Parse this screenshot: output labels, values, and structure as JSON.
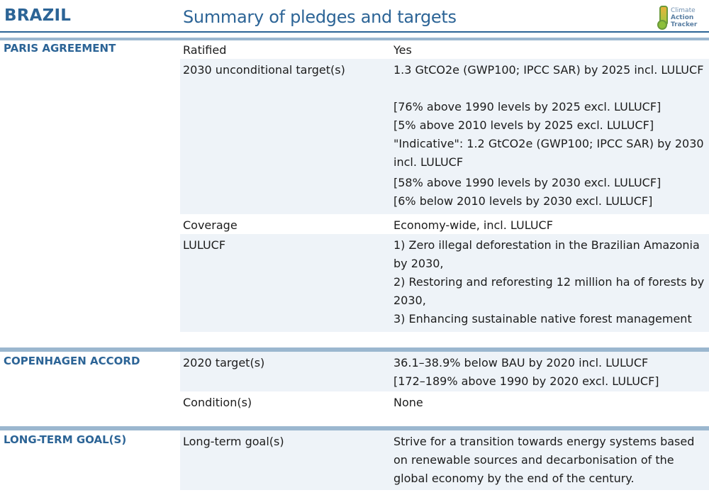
{
  "header": {
    "country": "BRAZIL",
    "title": "Summary of pledges and targets",
    "logo": {
      "line1": "Climate",
      "line2": "Action",
      "line3": "Tracker"
    },
    "accent_color": "#2c6496"
  },
  "sections": {
    "paris": {
      "label": "PARIS AGREEMENT",
      "rows": {
        "ratified": {
          "label": "Ratified",
          "value": "Yes"
        },
        "unconditional": {
          "label": "2030 unconditional target(s)",
          "v1": "1.3 GtCO2e (GWP100; IPCC SAR) by 2025 incl. LULUCF",
          "v2": "[76% above 1990 levels by 2025 excl. LULUCF]",
          "v3": "[5% above 2010 levels by 2025 excl. LULUCF]",
          "v4": "\"Indicative\": 1.2 GtCO2e (GWP100; IPCC SAR) by 2030 incl. LULUCF",
          "v5": "[58% above 1990 levels by 2030 excl. LULUCF]",
          "v6": "[6% below 2010 levels by 2030 excl. LULUCF]"
        },
        "coverage": {
          "label": "Coverage",
          "value": "Economy-wide, incl. LULUCF"
        },
        "lulucf": {
          "label": "LULUCF",
          "v1": "1) Zero illegal deforestation in the Brazilian Amazonia by 2030,",
          "v2": "2) Restoring and reforesting 12 million ha of forests by 2030,",
          "v3": "3) Enhancing sustainable native forest management"
        }
      }
    },
    "copenhagen": {
      "label": "COPENHAGEN ACCORD",
      "rows": {
        "target": {
          "label": "2020 target(s)",
          "v1": "36.1–38.9% below BAU by 2020 incl. LULUCF",
          "v2": "[172–189% above 1990 by 2020 excl. LULUCF]"
        },
        "condition": {
          "label": "Condition(s)",
          "value": "None"
        }
      }
    },
    "longterm": {
      "label": "LONG-TERM GOAL(S)",
      "rows": {
        "goal": {
          "label": "Long-term goal(s)",
          "value": "Strive for a transition towards energy systems based on renewable sources and decarbonisation of the global economy by the end of the century."
        }
      }
    }
  }
}
